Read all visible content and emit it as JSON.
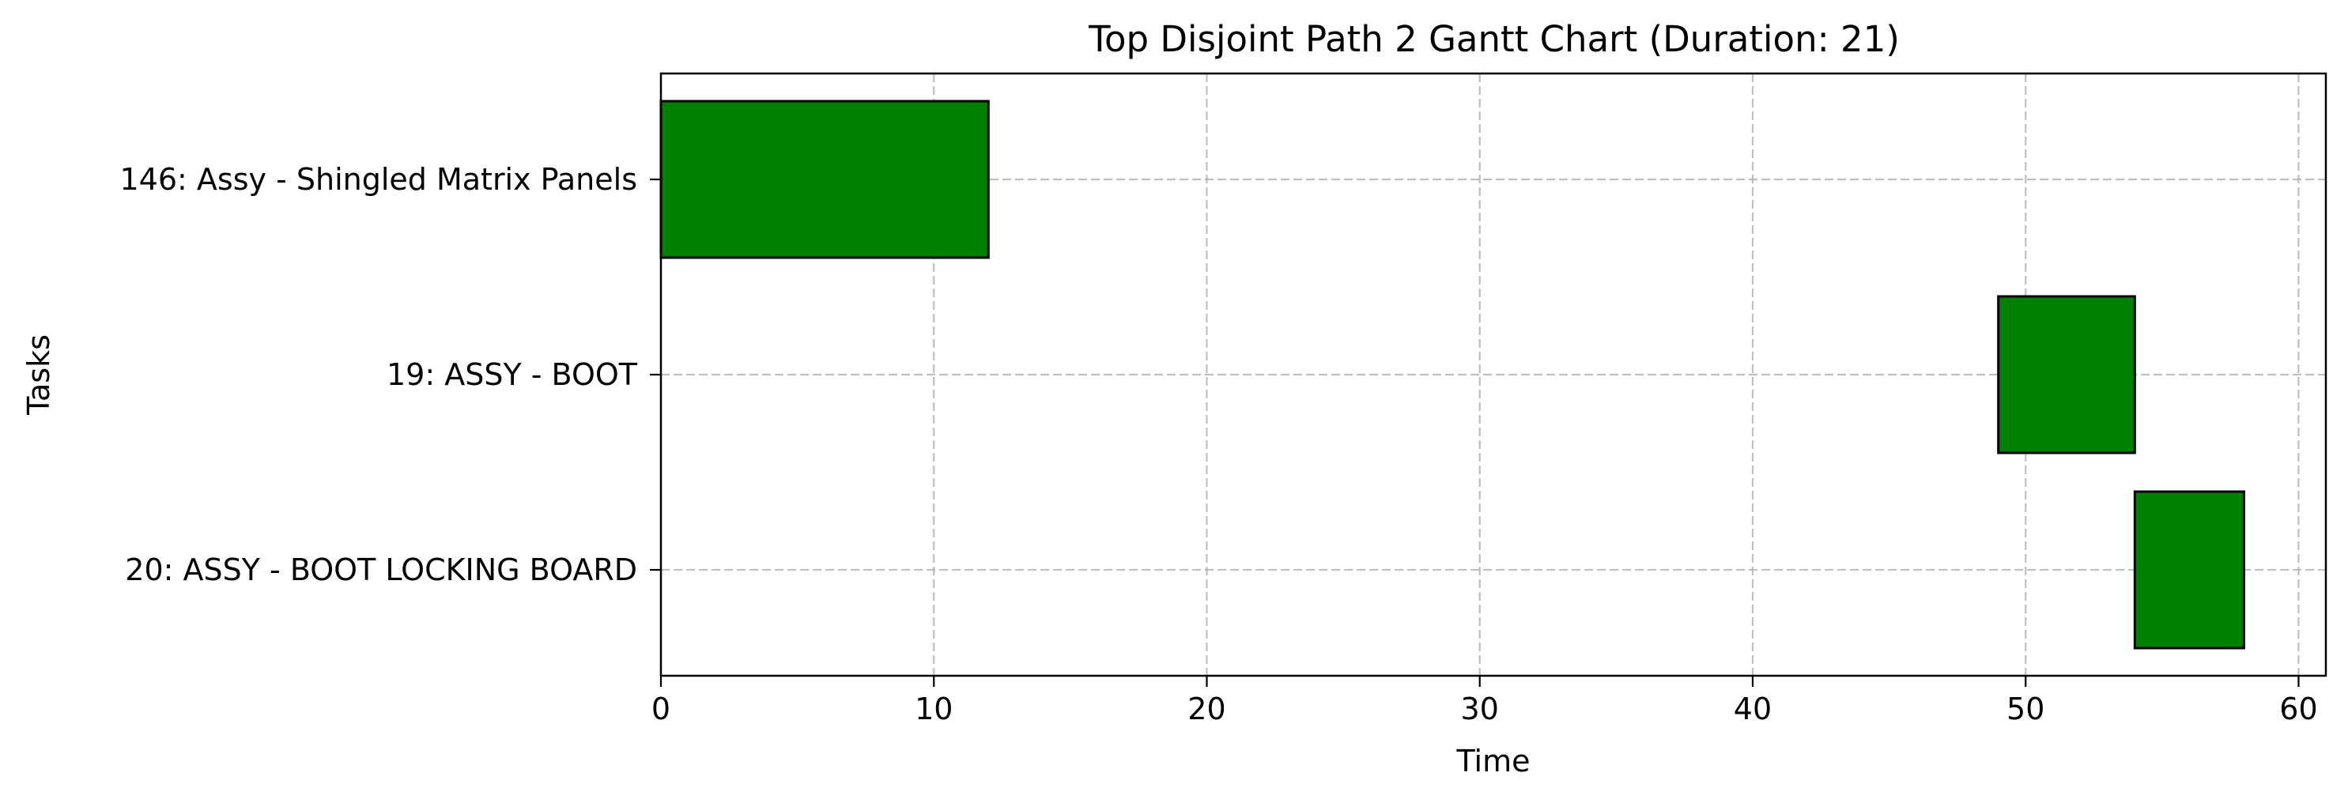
{
  "chart_data": {
    "type": "bar",
    "orientation": "horizontal",
    "title": "Top Disjoint Path 2 Gantt Chart (Duration: 21)",
    "xlabel": "Time",
    "ylabel": "Tasks",
    "xlim": [
      0,
      61
    ],
    "xticks": [
      0,
      10,
      20,
      30,
      40,
      50,
      60
    ],
    "grid": true,
    "tasks": [
      {
        "label": "146: Assy - Shingled Matrix Panels",
        "start": 0,
        "end": 12
      },
      {
        "label": "19: ASSY - BOOT",
        "start": 49,
        "end": 54
      },
      {
        "label": "20: ASSY - BOOT LOCKING BOARD",
        "start": 54,
        "end": 58
      }
    ],
    "colors": {
      "bar_fill": "#008000",
      "bar_edge": "#000000"
    }
  }
}
